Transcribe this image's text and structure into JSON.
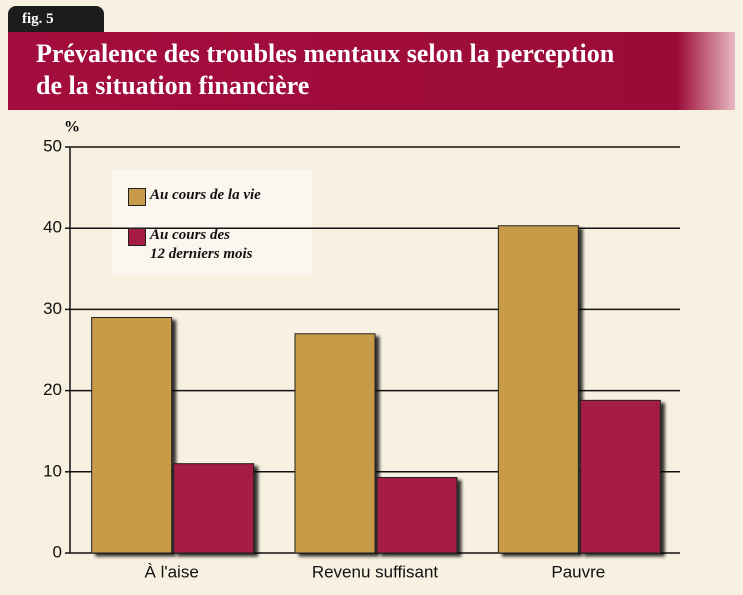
{
  "chart_data": {
    "type": "bar",
    "figure_label": "fig. 5",
    "title": "Prévalence des troubles mentaux selon la perception\nde la situation financière",
    "y_label": "%",
    "categories": [
      "À l'aise",
      "Revenu suffisant",
      "Pauvre"
    ],
    "series": [
      {
        "name": "Au cours de la vie",
        "color": "#c89b4a",
        "values": [
          29,
          27,
          40.3
        ]
      },
      {
        "name": "Au cours des\n12 derniers mois",
        "color": "#a51c44",
        "values": [
          11,
          9.3,
          18.8
        ]
      }
    ],
    "ylim": [
      0,
      50
    ],
    "yticks": [
      0,
      10,
      20,
      30,
      40,
      50
    ],
    "grid": true
  }
}
